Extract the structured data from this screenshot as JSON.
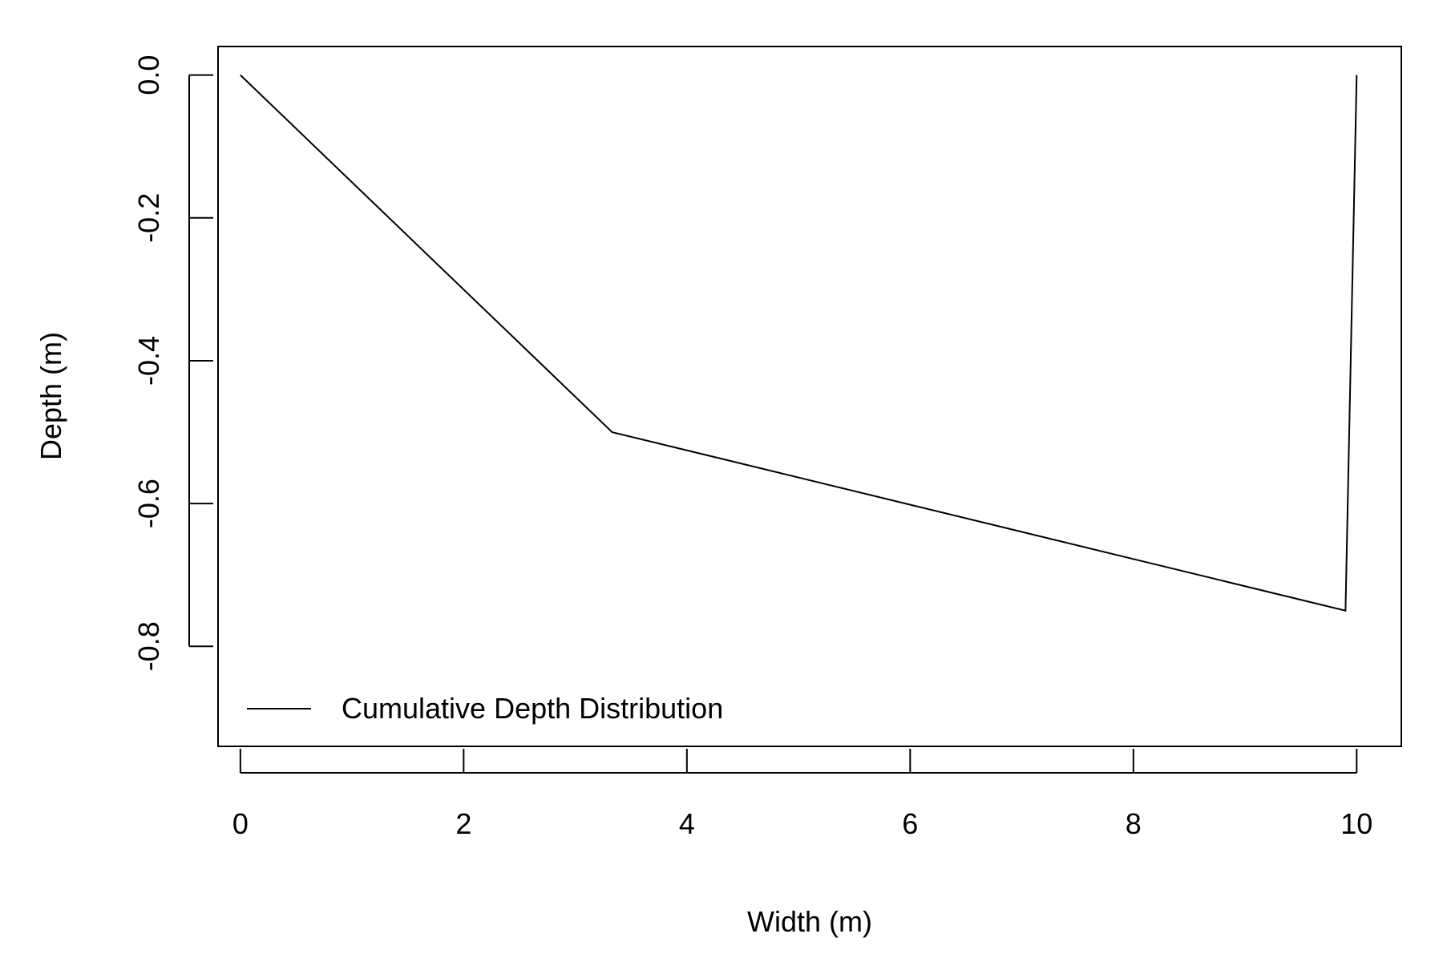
{
  "chart_data": {
    "type": "line",
    "title": "",
    "xlabel": "Width (m)",
    "ylabel": "Depth (m)",
    "xlim": [
      -0.2,
      10.4
    ],
    "ylim": [
      -0.94,
      0.04
    ],
    "xticks": [
      0,
      2,
      4,
      6,
      8,
      10
    ],
    "xtick_labels": [
      "0",
      "2",
      "4",
      "6",
      "8",
      "10"
    ],
    "yticks": [
      0.0,
      -0.2,
      -0.4,
      -0.6,
      -0.8
    ],
    "ytick_labels": [
      "0.0",
      "-0.2",
      "-0.4",
      "-0.6",
      "-0.8"
    ],
    "grid": false,
    "legend_position": "bottom-left",
    "series": [
      {
        "name": "Cumulative Depth Distribution",
        "color": "#000000",
        "x": [
          0,
          3.33,
          9.9,
          10
        ],
        "y": [
          0,
          -0.5,
          -0.75,
          0
        ]
      }
    ]
  }
}
